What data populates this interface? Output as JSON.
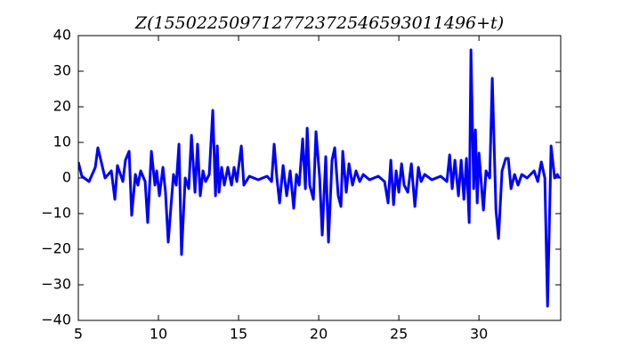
{
  "chart_data": {
    "type": "line",
    "title": "Z(155022509712772372546593011496+t)",
    "x": [
      5.0,
      5.22,
      5.67,
      6.06,
      6.22,
      6.67,
      7.06,
      7.28,
      7.44,
      7.78,
      7.94,
      8.17,
      8.33,
      8.56,
      8.72,
      8.89,
      9.17,
      9.33,
      9.56,
      9.78,
      9.89,
      10.06,
      10.28,
      10.44,
      10.61,
      10.78,
      10.94,
      11.11,
      11.28,
      11.44,
      11.67,
      11.89,
      12.06,
      12.28,
      12.44,
      12.61,
      12.78,
      12.94,
      13.17,
      13.39,
      13.56,
      13.67,
      13.78,
      13.94,
      14.11,
      14.33,
      14.56,
      14.72,
      14.89,
      15.17,
      15.33,
      15.67,
      16.22,
      16.78,
      17.06,
      17.22,
      17.39,
      17.56,
      17.78,
      18.0,
      18.22,
      18.44,
      18.61,
      18.78,
      19.0,
      19.17,
      19.28,
      19.44,
      19.67,
      19.83,
      20.06,
      20.22,
      20.44,
      20.61,
      20.83,
      21.0,
      21.22,
      21.39,
      21.5,
      21.72,
      21.89,
      22.11,
      22.33,
      22.56,
      22.78,
      23.17,
      23.72,
      24.11,
      24.33,
      24.5,
      24.67,
      24.83,
      25.0,
      25.17,
      25.33,
      25.56,
      25.78,
      26.0,
      26.22,
      26.39,
      26.61,
      27.06,
      27.61,
      28.0,
      28.17,
      28.33,
      28.5,
      28.72,
      28.89,
      29.06,
      29.22,
      29.39,
      29.5,
      29.67,
      29.78,
      29.89,
      30.0,
      30.17,
      30.28,
      30.44,
      30.67,
      30.83,
      31.06,
      31.22,
      31.44,
      31.67,
      31.83,
      32.0,
      32.22,
      32.44,
      32.67,
      33.0,
      33.44,
      33.67,
      33.89,
      34.11,
      34.28,
      34.5,
      34.72,
      34.89,
      35.0
    ],
    "series": [
      {
        "color": "#0000ff",
        "values": [
          4.5,
          0.5,
          -1,
          3,
          8.5,
          0,
          2,
          -6,
          3.5,
          -1,
          5,
          7.5,
          -10.5,
          1,
          -2,
          2,
          -1,
          -12.5,
          7.5,
          -2,
          2,
          -5,
          3,
          -4,
          -18,
          -8,
          1,
          -2,
          9.5,
          -21.5,
          0,
          -3,
          12,
          -4,
          9.5,
          -5,
          2,
          -1,
          1,
          19,
          -5,
          9,
          -4,
          3,
          -2,
          3,
          -2,
          3,
          -1,
          9,
          -2,
          0.5,
          -0.5,
          0.5,
          -1,
          9.5,
          0,
          -7,
          3.5,
          -5,
          2,
          -8.5,
          1,
          -2,
          11,
          -3,
          14,
          -2,
          -6,
          13,
          0,
          -16,
          6,
          -18,
          5,
          8.5,
          -5,
          -8,
          7.5,
          -4,
          4,
          -2,
          2,
          -1,
          1,
          -0.5,
          0.5,
          -1,
          -7,
          5,
          -7.5,
          2,
          -4,
          4,
          -2,
          -4,
          4,
          -8,
          3,
          -1,
          1,
          -0.5,
          0.5,
          -1,
          6.5,
          -3,
          5,
          -5,
          5,
          -6,
          5.5,
          -12.5,
          36,
          -3,
          13.5,
          -7,
          7,
          -3,
          -9,
          2,
          0,
          28,
          -9,
          -17,
          2,
          5.5,
          5.5,
          -3,
          1,
          -2,
          1,
          0,
          2,
          -1,
          4.5,
          0,
          -36,
          9,
          0,
          1,
          0
        ]
      }
    ],
    "xlim": [
      5,
      35.1
    ],
    "xticks": [
      5,
      10,
      15,
      20,
      25,
      30
    ],
    "ylim": [
      -40,
      40
    ],
    "yticks": [
      {
        "value": -40,
        "label": "−40"
      },
      {
        "value": -30,
        "label": "−30"
      },
      {
        "value": -20,
        "label": "−20"
      },
      {
        "value": -10,
        "label": "−10"
      },
      0,
      10,
      20,
      30,
      40
    ]
  }
}
